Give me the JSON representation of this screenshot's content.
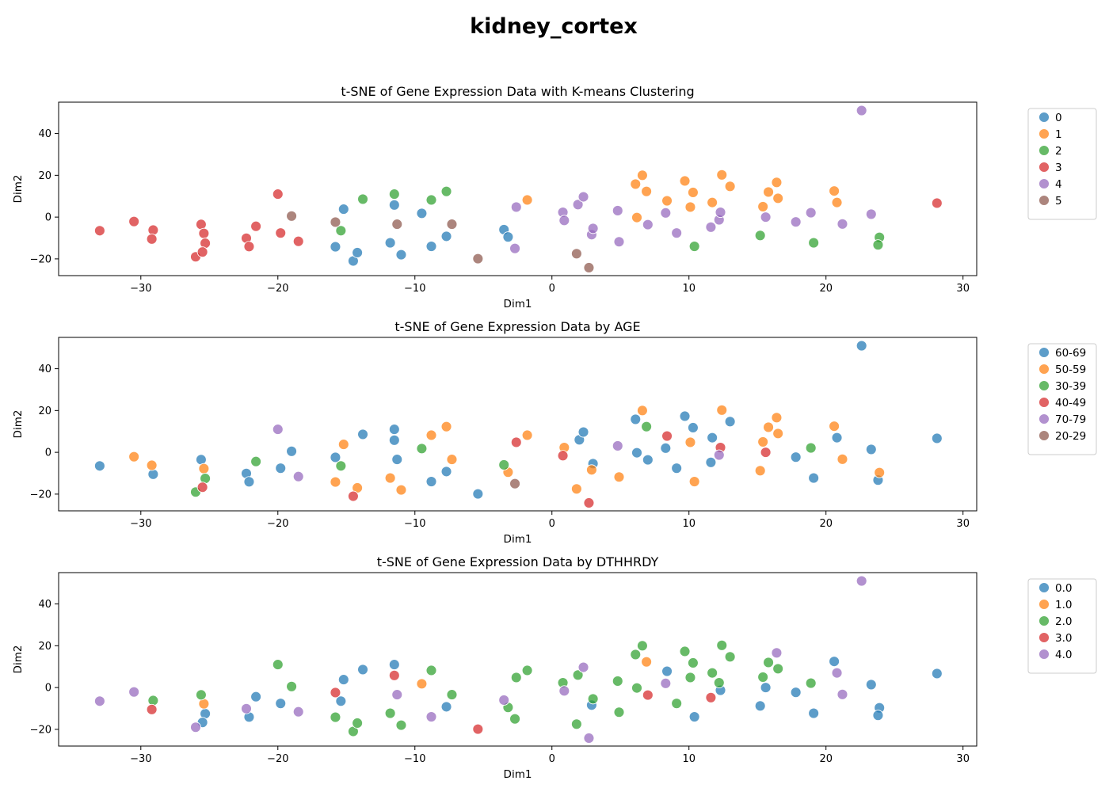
{
  "figure": {
    "title": "kidney_cortex"
  },
  "chart_data": [
    {
      "type": "scatter",
      "title": "t-SNE of Gene Expression Data with K-means Clustering",
      "xlabel": "Dim1",
      "ylabel": "Dim2",
      "xlim": [
        -36,
        31
      ],
      "ylim": [
        -28,
        55
      ],
      "xticks": [
        -30,
        -20,
        -10,
        0,
        10,
        20,
        30
      ],
      "yticks": [
        -20,
        0,
        20,
        40
      ],
      "grid": false,
      "legend_position": "outside-right",
      "series": [
        {
          "name": "0",
          "color": "#1f77b4",
          "x": [
            -15.2,
            -11.5,
            -9.5,
            -15.8,
            -14.5,
            -14.2,
            -11.8,
            -11,
            -8.8,
            -7.7,
            -3.5,
            -3.2
          ],
          "y": [
            3.8,
            5.8,
            1.8,
            -14.2,
            -21,
            -17,
            -12.3,
            -18,
            -14,
            -9.2,
            -6,
            -9.5
          ]
        },
        {
          "name": "1",
          "color": "#ff7f0e",
          "x": [
            -1.8,
            6.1,
            6.6,
            6.9,
            6.2,
            8.4,
            9.7,
            10.3,
            10.1,
            11.7,
            12.4,
            13,
            15.4,
            15.8,
            16.4,
            16.5,
            20.6,
            20.8
          ],
          "y": [
            8.2,
            15.8,
            20,
            12.3,
            -0.2,
            7.8,
            17.3,
            11.8,
            4.8,
            7,
            20.2,
            14.7,
            5,
            12,
            16.6,
            9,
            12.5,
            7
          ]
        },
        {
          "name": "2",
          "color": "#2ca02c",
          "x": [
            -15.4,
            -13.8,
            -11.5,
            -8.8,
            -7.7,
            10.4,
            15.2,
            19.1,
            23.9,
            23.8
          ],
          "y": [
            -6.5,
            8.6,
            11,
            8.2,
            12.3,
            -14,
            -8.8,
            -12.3,
            -9.7,
            -13.3
          ]
        },
        {
          "name": "3",
          "color": "#d62728",
          "x": [
            -33,
            -30.5,
            -29.1,
            -29.2,
            -25.6,
            -25.4,
            -25.3,
            -26,
            -25.5,
            -22.3,
            -22.1,
            -21.6,
            -20,
            -19.8,
            -18.5,
            28.1
          ],
          "y": [
            -6.5,
            -2.1,
            -6.2,
            -10.5,
            -3.5,
            -7.8,
            -12.5,
            -19,
            -16.7,
            -10.1,
            -14.1,
            -4.4,
            11,
            -7.6,
            -11.6,
            6.7
          ]
        },
        {
          "name": "4",
          "color": "#9467bd",
          "x": [
            -2.6,
            -2.7,
            0.8,
            0.9,
            1.9,
            2.3,
            2.9,
            3,
            4.8,
            4.9,
            7,
            8.3,
            9.1,
            11.6,
            12.2,
            12.3,
            15.6,
            17.8,
            18.9,
            21.2,
            23.3,
            22.6
          ],
          "y": [
            4.8,
            -15,
            2.3,
            -1.6,
            6,
            9.7,
            -8.4,
            -5.4,
            3.1,
            -11.8,
            -3.6,
            2,
            -7.6,
            -4.8,
            -1.3,
            2.3,
            0,
            -2.3,
            2.1,
            -3.3,
            1.4,
            51
          ]
        },
        {
          "name": "5",
          "color": "#8c564b",
          "x": [
            -19,
            -15.8,
            -11.3,
            -7.3,
            -5.4,
            1.8,
            2.7
          ],
          "y": [
            0.5,
            -2.4,
            -3.4,
            -3.4,
            -19.9,
            -17.5,
            -24.2
          ]
        }
      ]
    },
    {
      "type": "scatter",
      "title": "t-SNE of Gene Expression Data by AGE",
      "xlabel": "Dim1",
      "ylabel": "Dim2",
      "xlim": [
        -36,
        31
      ],
      "ylim": [
        -28,
        55
      ],
      "xticks": [
        -30,
        -20,
        -10,
        0,
        10,
        20,
        30
      ],
      "yticks": [
        -20,
        0,
        20,
        40
      ],
      "grid": false,
      "legend_position": "outside-right",
      "series": [
        {
          "name": "60-69",
          "color": "#1f77b4",
          "x": [
            -33,
            -29.1,
            -25.6,
            -22.3,
            -22.1,
            -19.8,
            -19,
            -15.8,
            -13.8,
            -11.5,
            -11.5,
            -11.3,
            -8.8,
            -7.7,
            -5.4,
            2,
            2.3,
            3,
            6.1,
            6.2,
            7,
            8.3,
            9.1,
            9.7,
            10.3,
            11.6,
            11.7,
            13,
            17.8,
            19.1,
            20.8,
            23.3,
            23.8,
            22.6,
            28.1
          ],
          "y": [
            -6.5,
            -10.5,
            -3.5,
            -10.1,
            -14.1,
            -7.6,
            0.5,
            -2.4,
            8.6,
            11,
            5.8,
            -3.4,
            -14,
            -9.2,
            -19.9,
            6,
            9.7,
            -5.4,
            15.8,
            -0.2,
            -3.6,
            2,
            -7.6,
            17.3,
            11.8,
            -4.8,
            7,
            14.7,
            -2.3,
            -12.3,
            7,
            1.4,
            -13.3,
            51,
            6.7
          ]
        },
        {
          "name": "50-59",
          "color": "#ff7f0e",
          "x": [
            -30.5,
            -29.2,
            -25.4,
            -15.2,
            -15.8,
            -14.2,
            -11.8,
            -11,
            -8.8,
            -7.7,
            -7.3,
            -3.2,
            -1.8,
            0.9,
            1.8,
            2.9,
            4.9,
            6.6,
            10.1,
            10.4,
            12.4,
            15.2,
            15.4,
            15.8,
            16.4,
            16.5,
            20.6,
            21.2,
            23.9
          ],
          "y": [
            -2.1,
            -6.2,
            -7.8,
            3.8,
            -14.2,
            -17,
            -12.3,
            -18,
            8.2,
            12.3,
            -3.4,
            -9.5,
            8.2,
            2.3,
            -17.5,
            -8.4,
            -11.8,
            20,
            4.8,
            -14,
            20.2,
            -8.8,
            5,
            12,
            16.6,
            9,
            12.5,
            -3.3,
            -9.7
          ]
        },
        {
          "name": "30-39",
          "color": "#2ca02c",
          "x": [
            -26,
            -25.3,
            -21.6,
            -15.4,
            -9.5,
            -3.5,
            6.9,
            18.9
          ],
          "y": [
            -19,
            -12.5,
            -4.4,
            -6.5,
            1.8,
            -6,
            12.3,
            2.1
          ]
        },
        {
          "name": "40-49",
          "color": "#d62728",
          "x": [
            -25.5,
            -14.5,
            -2.6,
            0.8,
            2.7,
            8.4,
            12.3,
            15.6
          ],
          "y": [
            -16.7,
            -21,
            4.8,
            -1.6,
            -24.2,
            7.8,
            2.3,
            0
          ]
        },
        {
          "name": "70-79",
          "color": "#9467bd",
          "x": [
            -20,
            -18.5,
            4.8,
            12.2
          ],
          "y": [
            11,
            -11.6,
            3.1,
            -1.3
          ]
        },
        {
          "name": "20-29",
          "color": "#8c564b",
          "x": [
            -2.7
          ],
          "y": [
            -15
          ]
        }
      ]
    },
    {
      "type": "scatter",
      "title": "t-SNE of Gene Expression Data by DTHHRDY",
      "xlabel": "Dim1",
      "ylabel": "Dim2",
      "xlim": [
        -36,
        31
      ],
      "ylim": [
        -28,
        55
      ],
      "xticks": [
        -30,
        -20,
        -10,
        0,
        10,
        20,
        30
      ],
      "yticks": [
        -20,
        0,
        20,
        40
      ],
      "grid": false,
      "legend_position": "outside-right",
      "series": [
        {
          "name": "0.0",
          "color": "#1f77b4",
          "x": [
            -25.3,
            -25.5,
            -22.1,
            -21.6,
            -19.8,
            -15.2,
            -15.4,
            -13.8,
            -11.5,
            -7.7,
            2.9,
            8.4,
            10.4,
            12.3,
            15.2,
            15.6,
            17.8,
            19.1,
            20.6,
            23.3,
            23.9,
            23.8,
            28.1
          ],
          "y": [
            -12.5,
            -16.7,
            -14.1,
            -4.4,
            -7.6,
            3.8,
            -6.5,
            8.6,
            11,
            -9.2,
            -8.4,
            7.8,
            -14,
            -1.3,
            -8.8,
            0,
            -2.3,
            -12.3,
            12.5,
            1.4,
            -9.7,
            -13.3,
            6.7
          ]
        },
        {
          "name": "1.0",
          "color": "#ff7f0e",
          "x": [
            -25.4,
            -9.5,
            6.9
          ],
          "y": [
            -7.8,
            1.8,
            12.3
          ]
        },
        {
          "name": "2.0",
          "color": "#2ca02c",
          "x": [
            -29.1,
            -25.6,
            -20,
            -19,
            -15.8,
            -14.5,
            -14.2,
            -11.8,
            -11,
            -8.8,
            -7.3,
            -3.2,
            -2.7,
            -2.6,
            -1.8,
            0.8,
            1.9,
            1.8,
            3,
            4.8,
            4.9,
            6.1,
            6.2,
            6.6,
            9.1,
            9.7,
            10.1,
            10.3,
            11.7,
            12.4,
            12.2,
            13,
            15.4,
            15.8,
            16.5,
            18.9
          ],
          "y": [
            -6.2,
            -3.5,
            11,
            0.5,
            -14.2,
            -21,
            -17,
            -12.3,
            -18,
            8.2,
            -3.4,
            -9.5,
            -15,
            4.8,
            8.2,
            2.3,
            6,
            -17.5,
            -5.4,
            3.1,
            -11.8,
            15.8,
            -0.2,
            20,
            -7.6,
            17.3,
            4.8,
            11.8,
            7,
            20.2,
            2.3,
            14.7,
            5,
            12,
            9,
            2.1
          ]
        },
        {
          "name": "3.0",
          "color": "#d62728",
          "x": [
            -29.2,
            -15.8,
            -11.5,
            -5.4,
            7,
            11.6
          ],
          "y": [
            -10.5,
            -2.4,
            5.8,
            -19.9,
            -3.6,
            -4.8
          ]
        },
        {
          "name": "4.0",
          "color": "#9467bd",
          "x": [
            -33,
            -30.5,
            -26,
            -22.3,
            -18.5,
            -11.3,
            -8.8,
            -3.5,
            0.9,
            2.3,
            2.7,
            8.3,
            16.4,
            20.8,
            21.2,
            22.6
          ],
          "y": [
            -6.5,
            -2.1,
            -19,
            -10.1,
            -11.6,
            -3.4,
            -14,
            -6,
            -1.6,
            9.7,
            -24.2,
            2,
            16.6,
            7,
            -3.3,
            51
          ]
        }
      ]
    }
  ]
}
